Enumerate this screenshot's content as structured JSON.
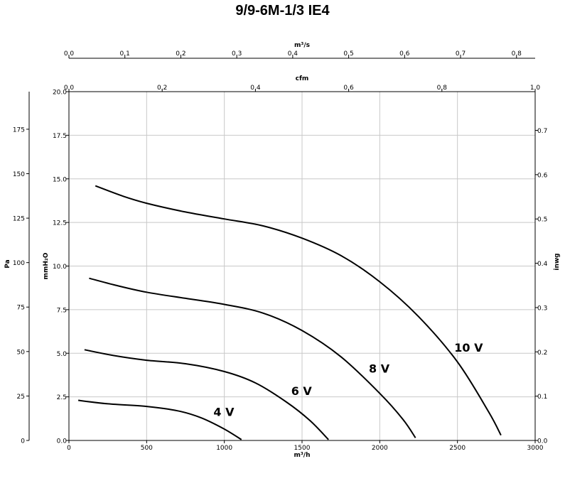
{
  "chart_data": {
    "type": "line",
    "title": "9/9-6M-1/3 IE4",
    "xlabel": "m³/h",
    "ylabel": "mmH₂O",
    "xlim": [
      0,
      3000
    ],
    "ylim": [
      0,
      20
    ],
    "grid": true,
    "x_ticks": [
      "0",
      "500",
      "1000",
      "1500",
      "2000",
      "2500",
      "3000"
    ],
    "y_ticks": [
      "0.0",
      "2.5",
      "5.0",
      "7.5",
      "10.0",
      "12.5",
      "15.0",
      "17.5",
      "20.0"
    ],
    "secondary_axes": {
      "top_m3s": {
        "label": "m³/s",
        "ticks": [
          "0.0",
          "0.1",
          "0.2",
          "0.3",
          "0.4",
          "0.5",
          "0.6",
          "0.7",
          "0.8"
        ]
      },
      "top_cfm": {
        "label": "cfm",
        "ticks": [
          "0.0",
          "0.2",
          "0.4",
          "0.6",
          "0.8",
          "1.0"
        ]
      },
      "left_pa": {
        "label": "Pa",
        "ticks": [
          "0",
          "25",
          "50",
          "75",
          "100",
          "125",
          "150",
          "175"
        ]
      },
      "right_inwg": {
        "label": "inwg",
        "ticks": [
          "0.0",
          "0.1",
          "0.2",
          "0.3",
          "0.4",
          "0.5",
          "0.6",
          "0.7"
        ]
      }
    },
    "series": [
      {
        "name": "4 V",
        "x": [
          60,
          250,
          500,
          700,
          850,
          1000,
          1110
        ],
        "y": [
          2.3,
          2.1,
          1.95,
          1.7,
          1.3,
          0.65,
          0.05
        ]
      },
      {
        "name": "6 V",
        "x": [
          100,
          300,
          500,
          750,
          1000,
          1200,
          1400,
          1550,
          1670
        ],
        "y": [
          5.2,
          4.85,
          4.6,
          4.4,
          3.95,
          3.3,
          2.2,
          1.15,
          0.05
        ]
      },
      {
        "name": "8 V",
        "x": [
          130,
          300,
          500,
          750,
          1000,
          1250,
          1500,
          1750,
          2000,
          2150,
          2230
        ],
        "y": [
          9.3,
          8.9,
          8.5,
          8.15,
          7.8,
          7.3,
          6.3,
          4.8,
          2.7,
          1.2,
          0.15
        ]
      },
      {
        "name": "10 V",
        "x": [
          170,
          350,
          500,
          750,
          1000,
          1250,
          1500,
          1750,
          2000,
          2250,
          2500,
          2700,
          2780
        ],
        "y": [
          14.6,
          14.0,
          13.6,
          13.1,
          12.7,
          12.3,
          11.6,
          10.6,
          9.1,
          7.1,
          4.5,
          1.65,
          0.3
        ]
      }
    ],
    "curve_labels": [
      {
        "text": "4 V",
        "x": 930,
        "y": 1.4
      },
      {
        "text": "6 V",
        "x": 1430,
        "y": 2.6
      },
      {
        "text": "8 V",
        "x": 1930,
        "y": 3.9
      },
      {
        "text": "10 V",
        "x": 2480,
        "y": 5.1
      }
    ]
  }
}
